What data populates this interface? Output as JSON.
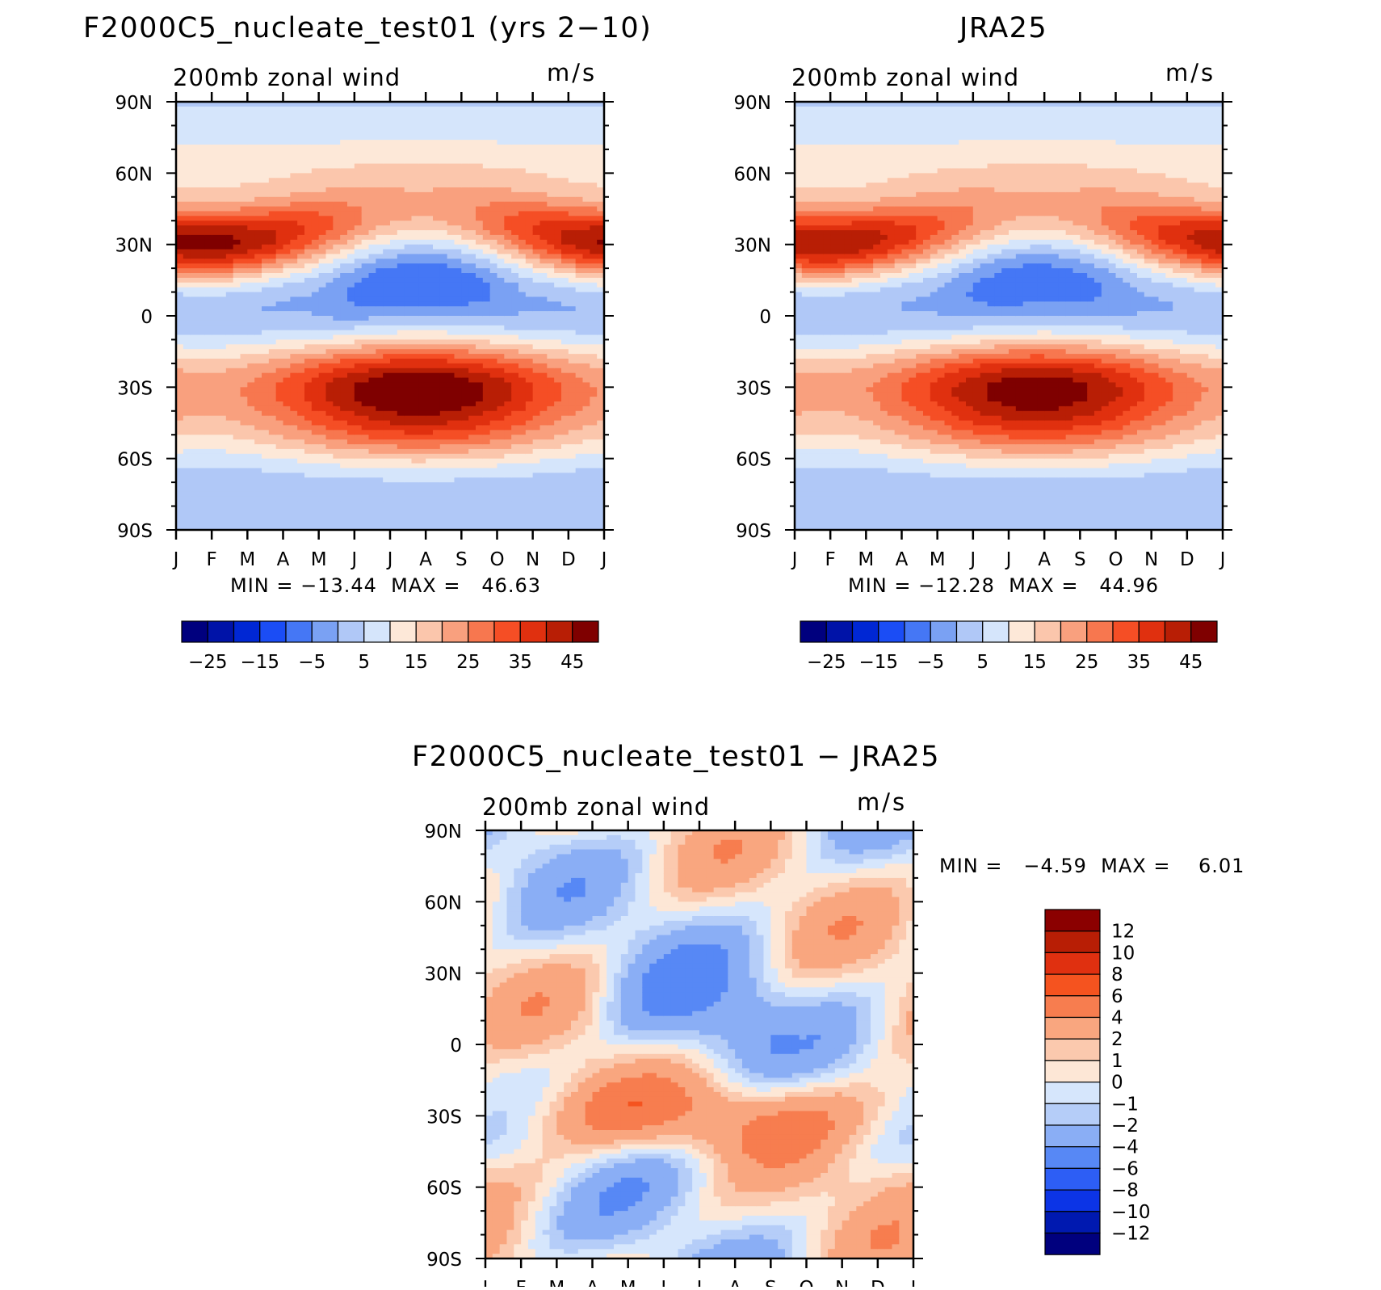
{
  "chart_data": [
    {
      "type": "contour",
      "title": "F2000C5_nucleate_test01 (yrs 2−10)",
      "left_label": "200mb zonal wind",
      "units": "m/s",
      "x_tick_labels": [
        "J",
        "F",
        "M",
        "A",
        "M",
        "J",
        "J",
        "A",
        "S",
        "O",
        "N",
        "D",
        "J"
      ],
      "y_tick_labels": [
        "90N",
        "60N",
        "30N",
        "0",
        "30S",
        "60S",
        "90S"
      ],
      "ylim": [
        -90,
        90
      ],
      "stats": "MIN = −13.44  MAX =   46.63",
      "min": -13.44,
      "max": 46.63,
      "colorbar_tick_labels": [
        "−25",
        "−15",
        "−5",
        "5",
        "15",
        "25",
        "35",
        "45"
      ],
      "jets": {
        "nh_jet_lat": 30,
        "nh_jet_peak": 44,
        "sh_jet_lat": -29,
        "sh_jet_peak": 46,
        "trop_min": -13
      }
    },
    {
      "type": "contour",
      "title": "JRA25",
      "left_label": "200mb zonal wind",
      "units": "m/s",
      "x_tick_labels": [
        "J",
        "F",
        "M",
        "A",
        "M",
        "J",
        "J",
        "A",
        "S",
        "O",
        "N",
        "D",
        "J"
      ],
      "y_tick_labels": [
        "90N",
        "60N",
        "30N",
        "0",
        "30S",
        "60S",
        "90S"
      ],
      "ylim": [
        -90,
        90
      ],
      "stats": "MIN = −12.28  MAX =   44.96",
      "min": -12.28,
      "max": 44.96,
      "colorbar_tick_labels": [
        "−25",
        "−15",
        "−5",
        "5",
        "15",
        "25",
        "35",
        "45"
      ],
      "jets": {
        "nh_jet_lat": 30,
        "nh_jet_peak": 42,
        "sh_jet_lat": -29,
        "sh_jet_peak": 44,
        "trop_min": -12
      }
    },
    {
      "type": "contour",
      "title": "F2000C5_nucleate_test01 − JRA25",
      "left_label": "200mb zonal wind",
      "units": "m/s",
      "x_tick_labels": [
        "J",
        "F",
        "M",
        "A",
        "M",
        "J",
        "J",
        "A",
        "S",
        "O",
        "N",
        "D",
        "J"
      ],
      "y_tick_labels": [
        "90N",
        "60N",
        "30N",
        "0",
        "30S",
        "60S",
        "90S"
      ],
      "ylim": [
        -90,
        90
      ],
      "stats": "MIN =   −4.59  MAX =    6.01",
      "min": -4.59,
      "max": 6.01,
      "colorbar_tick_labels": [
        "12",
        "10",
        "8",
        "6",
        "4",
        "2",
        "1",
        "0",
        "−1",
        "−2",
        "−4",
        "−6",
        "−8",
        "−10",
        "−12"
      ]
    }
  ],
  "colors": {
    "main_scale": [
      "#00007e",
      "#0013a8",
      "#0027d4",
      "#1b4df5",
      "#4577f5",
      "#7aa1f3",
      "#b0c8f7",
      "#d5e5fb",
      "#fde8d8",
      "#fbc6ac",
      "#f9a07e",
      "#f7774f",
      "#f54e25",
      "#e0300f",
      "#b81e05",
      "#7f0000"
    ],
    "diff_scale": [
      "#00007e",
      "#0019b0",
      "#0c34e6",
      "#2d5ef5",
      "#5788f5",
      "#8aaef5",
      "#b5cdf8",
      "#d6e6fc",
      "#fde7d6",
      "#fbc9ae",
      "#f9a67f",
      "#f77d4f",
      "#f5531f",
      "#e03010",
      "#b81e05",
      "#8b0000"
    ]
  }
}
